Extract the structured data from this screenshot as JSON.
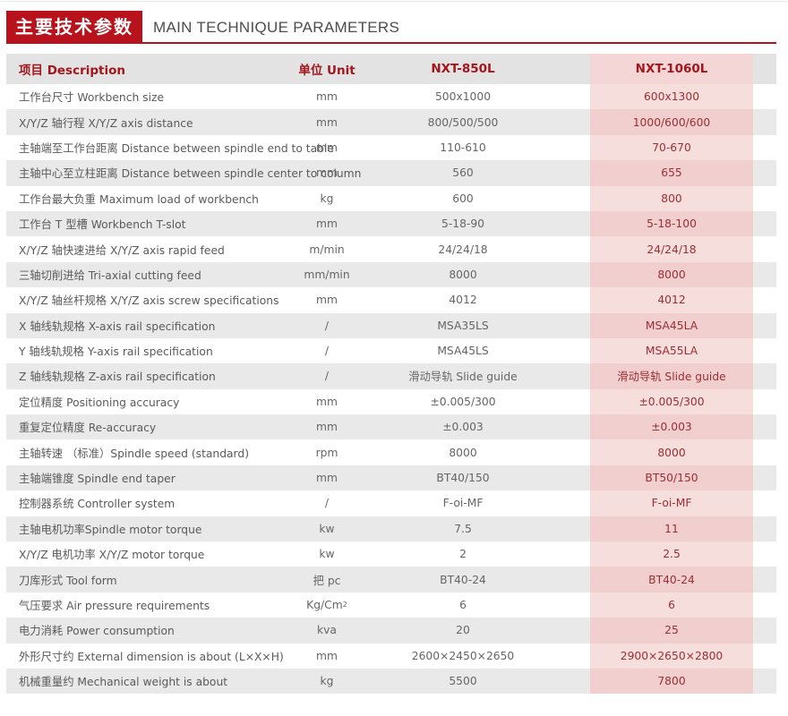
{
  "header": {
    "title_cn": "主要技术参数",
    "title_en": "MAIN TECHNIQUE PARAMETERS"
  },
  "table": {
    "columns": [
      "项目 Description",
      "单位 Unit",
      "NXT-850L",
      "NXT-1060L"
    ],
    "rows": [
      {
        "desc": "工作台尺寸 Workbench size",
        "unit": "mm",
        "m1": "500x1000",
        "m2": "600x1300"
      },
      {
        "desc": "X/Y/Z 轴行程 X/Y/Z axis distance",
        "unit": "mm",
        "m1": "800/500/500",
        "m2": "1000/600/600"
      },
      {
        "desc": "主轴端至工作台距离 Distance between spindle end to table",
        "unit": "mm",
        "m1": "110-610",
        "m2": "70-670"
      },
      {
        "desc": "主轴中心至立柱距离 Distance between spindle center to column",
        "unit": "mm",
        "m1": "560",
        "m2": "655"
      },
      {
        "desc": "工作台最大负重 Maximum load of workbench",
        "unit": "kg",
        "m1": "600",
        "m2": "800"
      },
      {
        "desc": "工作台 T 型槽 Workbench T-slot",
        "unit": "mm",
        "m1": "5-18-90",
        "m2": "5-18-100"
      },
      {
        "desc": "X/Y/Z 轴快速进给 X/Y/Z axis rapid feed",
        "unit": "m/min",
        "m1": "24/24/18",
        "m2": "24/24/18"
      },
      {
        "desc": "三轴切削进给 Tri-axial cutting feed",
        "unit": "mm/min",
        "m1": "8000",
        "m2": "8000"
      },
      {
        "desc": "X/Y/Z 轴丝杆规格 X/Y/Z axis screw specifications",
        "unit": "mm",
        "m1": "4012",
        "m2": "4012"
      },
      {
        "desc": "X 轴线轨规格 X-axis rail specification",
        "unit": "/",
        "m1": "MSA35LS",
        "m2": "MSA45LA"
      },
      {
        "desc": "Y 轴线轨规格 Y-axis rail specification",
        "unit": "/",
        "m1": "MSA45LS",
        "m2": "MSA55LA"
      },
      {
        "desc": "Z 轴线轨规格 Z-axis rail specification",
        "unit": "/",
        "m1": "滑动导轨 Slide guide",
        "m2": "滑动导轨 Slide guide"
      },
      {
        "desc": "定位精度 Positioning accuracy",
        "unit": "mm",
        "m1": "±0.005/300",
        "m2": "±0.005/300"
      },
      {
        "desc": "重复定位精度 Re-accuracy",
        "unit": "mm",
        "m1": "±0.003",
        "m2": "±0.003"
      },
      {
        "desc": "主轴转速 （标准）Spindle speed (standard)",
        "unit": "rpm",
        "m1": "8000",
        "m2": "8000"
      },
      {
        "desc": "主轴端锥度 Spindle end taper",
        "unit": "mm",
        "m1": "BT40/150",
        "m2": "BT50/150"
      },
      {
        "desc": "控制器系统 Controller system",
        "unit": "/",
        "m1": "F-oi-MF",
        "m2": "F-oi-MF"
      },
      {
        "desc": "主轴电机功率Spindle motor torque",
        "unit": "kw",
        "m1": "7.5",
        "m2": "11"
      },
      {
        "desc": "X/Y/Z 电机功率 X/Y/Z motor torque",
        "unit": "kw",
        "m1": "2",
        "m2": "2.5"
      },
      {
        "desc": "刀库形式 Tool form",
        "unit": "把 pc",
        "m1": "BT40-24",
        "m2": "BT40-24"
      },
      {
        "desc": "气压要求 Air pressure requirements",
        "unit": "Kg/Cm",
        "unit_sup": "2",
        "m1": "6",
        "m2": "6"
      },
      {
        "desc": "电力消耗 Power consumption",
        "unit": "kva",
        "m1": "20",
        "m2": "25"
      },
      {
        "desc": "外形尺寸约 External dimension is about (L×X×H)",
        "unit": "mm",
        "m1": "2600×2450×2650",
        "m2": "2900×2650×2800"
      },
      {
        "desc": "机械重量约 Mechanical weight is about",
        "unit": "kg",
        "m1": "5500",
        "m2": "7800"
      }
    ]
  },
  "colors": {
    "accent": "#b8131c",
    "highlight_column": "#f6dedd",
    "alt_row": "#e9e9e9"
  }
}
